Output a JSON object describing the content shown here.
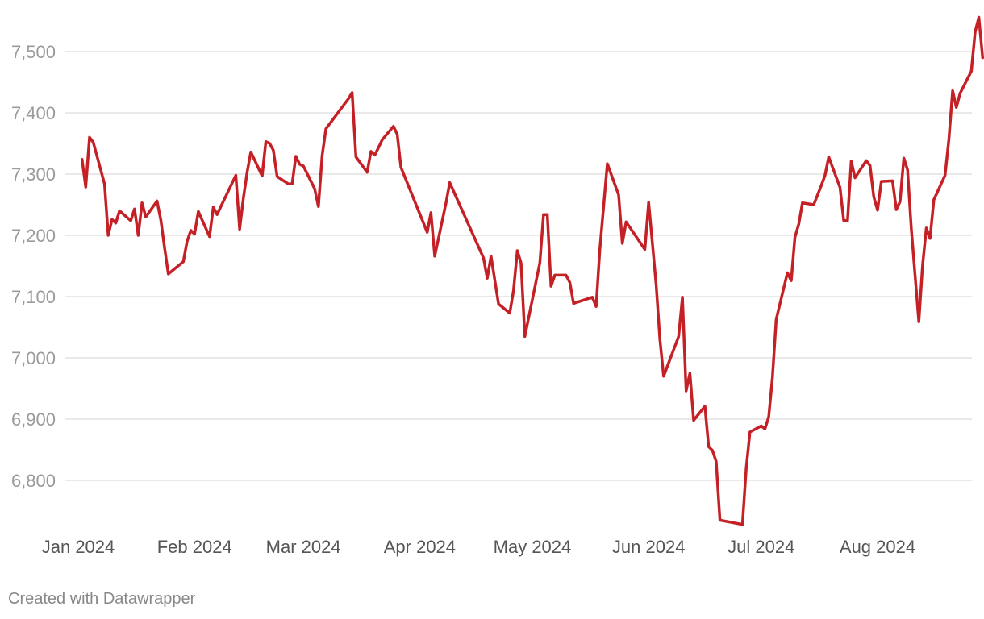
{
  "footer": {
    "credit": "Created with Datawrapper"
  },
  "colors": {
    "line": "#c42026",
    "grid": "#dcdcdc",
    "tick_y": "#9a9a9a",
    "tick_x": "#555555"
  },
  "chart_data": {
    "type": "line",
    "title": "",
    "xlabel": "",
    "ylabel": "",
    "grid": true,
    "ylim": [
      6700,
      7560
    ],
    "xlim": [
      "2024-01-01",
      "2024-08-27"
    ],
    "yticks": [
      6800,
      6900,
      7000,
      7100,
      7200,
      7300,
      7400,
      7500
    ],
    "ytick_labels": [
      "6,800",
      "6,900",
      "7,000",
      "7,100",
      "7,200",
      "7,300",
      "7,400",
      "7,500"
    ],
    "xticks": [
      {
        "date": "2024-01-01",
        "label": "Jan 2024"
      },
      {
        "date": "2024-02-01",
        "label": "Feb 2024"
      },
      {
        "date": "2024-03-01",
        "label": "Mar 2024"
      },
      {
        "date": "2024-04-01",
        "label": "Apr 2024"
      },
      {
        "date": "2024-05-01",
        "label": "May 2024"
      },
      {
        "date": "2024-06-01",
        "label": "Jun 2024"
      },
      {
        "date": "2024-07-01",
        "label": "Jul 2024"
      },
      {
        "date": "2024-08-01",
        "label": "Aug 2024"
      }
    ],
    "series": [
      {
        "points": [
          [
            "2024-01-02",
            7324
          ],
          [
            "2024-01-03",
            7279
          ],
          [
            "2024-01-04",
            7360
          ],
          [
            "2024-01-05",
            7352
          ],
          [
            "2024-01-08",
            7284
          ],
          [
            "2024-01-09",
            7200
          ],
          [
            "2024-01-10",
            7226
          ],
          [
            "2024-01-11",
            7220
          ],
          [
            "2024-01-12",
            7240
          ],
          [
            "2024-01-15",
            7224
          ],
          [
            "2024-01-16",
            7243
          ],
          [
            "2024-01-17",
            7200
          ],
          [
            "2024-01-18",
            7253
          ],
          [
            "2024-01-19",
            7230
          ],
          [
            "2024-01-22",
            7256
          ],
          [
            "2024-01-23",
            7225
          ],
          [
            "2024-01-24",
            7180
          ],
          [
            "2024-01-25",
            7137
          ],
          [
            "2024-01-29",
            7157
          ],
          [
            "2024-01-30",
            7190
          ],
          [
            "2024-01-31",
            7208
          ],
          [
            "2024-02-01",
            7202
          ],
          [
            "2024-02-02",
            7239
          ],
          [
            "2024-02-05",
            7198
          ],
          [
            "2024-02-06",
            7246
          ],
          [
            "2024-02-07",
            7234
          ],
          [
            "2024-02-12",
            7298
          ],
          [
            "2024-02-13",
            7210
          ],
          [
            "2024-02-14",
            7260
          ],
          [
            "2024-02-15",
            7303
          ],
          [
            "2024-02-16",
            7336
          ],
          [
            "2024-02-19",
            7297
          ],
          [
            "2024-02-20",
            7353
          ],
          [
            "2024-02-21",
            7350
          ],
          [
            "2024-02-22",
            7339
          ],
          [
            "2024-02-23",
            7296
          ],
          [
            "2024-02-26",
            7284
          ],
          [
            "2024-02-27",
            7284
          ],
          [
            "2024-02-28",
            7329
          ],
          [
            "2024-02-29",
            7316
          ],
          [
            "2024-03-01",
            7313
          ],
          [
            "2024-03-04",
            7276
          ],
          [
            "2024-03-05",
            7247
          ],
          [
            "2024-03-06",
            7330
          ],
          [
            "2024-03-07",
            7374
          ],
          [
            "2024-03-13",
            7423
          ],
          [
            "2024-03-14",
            7433
          ],
          [
            "2024-03-15",
            7328
          ],
          [
            "2024-03-18",
            7303
          ],
          [
            "2024-03-19",
            7337
          ],
          [
            "2024-03-20",
            7331
          ],
          [
            "2024-03-21",
            7343
          ],
          [
            "2024-03-22",
            7356
          ],
          [
            "2024-03-25",
            7378
          ],
          [
            "2024-03-26",
            7365
          ],
          [
            "2024-03-27",
            7311
          ],
          [
            "2024-04-03",
            7205
          ],
          [
            "2024-04-04",
            7237
          ],
          [
            "2024-04-05",
            7166
          ],
          [
            "2024-04-08",
            7253
          ],
          [
            "2024-04-09",
            7286
          ],
          [
            "2024-04-18",
            7163
          ],
          [
            "2024-04-19",
            7130
          ],
          [
            "2024-04-20",
            7166
          ],
          [
            "2024-04-22",
            7088
          ],
          [
            "2024-04-25",
            7073
          ],
          [
            "2024-04-26",
            7110
          ],
          [
            "2024-04-27",
            7175
          ],
          [
            "2024-04-28",
            7155
          ],
          [
            "2024-04-29",
            7035
          ],
          [
            "2024-05-03",
            7155
          ],
          [
            "2024-05-04",
            7234
          ],
          [
            "2024-05-05",
            7234
          ],
          [
            "2024-05-06",
            7117
          ],
          [
            "2024-05-07",
            7135
          ],
          [
            "2024-05-10",
            7135
          ],
          [
            "2024-05-11",
            7123
          ],
          [
            "2024-05-12",
            7089
          ],
          [
            "2024-05-17",
            7099
          ],
          [
            "2024-05-18",
            7084
          ],
          [
            "2024-05-19",
            7177
          ],
          [
            "2024-05-21",
            7317
          ],
          [
            "2024-05-24",
            7266
          ],
          [
            "2024-05-25",
            7187
          ],
          [
            "2024-05-26",
            7222
          ],
          [
            "2024-05-31",
            7177
          ],
          [
            "2024-06-01",
            7254
          ],
          [
            "2024-06-03",
            7120
          ],
          [
            "2024-06-04",
            7030
          ],
          [
            "2024-06-05",
            6970
          ],
          [
            "2024-06-09",
            7035
          ],
          [
            "2024-06-10",
            7099
          ],
          [
            "2024-06-11",
            6946
          ],
          [
            "2024-06-12",
            6975
          ],
          [
            "2024-06-13",
            6898
          ],
          [
            "2024-06-16",
            6921
          ],
          [
            "2024-06-17",
            6855
          ],
          [
            "2024-06-18",
            6849
          ],
          [
            "2024-06-19",
            6831
          ],
          [
            "2024-06-20",
            6735
          ],
          [
            "2024-06-26",
            6728
          ],
          [
            "2024-06-27",
            6820
          ],
          [
            "2024-06-28",
            6879
          ],
          [
            "2024-07-01",
            6889
          ],
          [
            "2024-07-02",
            6884
          ],
          [
            "2024-07-03",
            6904
          ],
          [
            "2024-07-04",
            6968
          ],
          [
            "2024-07-05",
            7063
          ],
          [
            "2024-07-08",
            7139
          ],
          [
            "2024-07-09",
            7126
          ],
          [
            "2024-07-10",
            7197
          ],
          [
            "2024-07-11",
            7218
          ],
          [
            "2024-07-12",
            7253
          ],
          [
            "2024-07-15",
            7250
          ],
          [
            "2024-07-17",
            7281
          ],
          [
            "2024-07-18",
            7298
          ],
          [
            "2024-07-19",
            7328
          ],
          [
            "2024-07-22",
            7278
          ],
          [
            "2024-07-23",
            7224
          ],
          [
            "2024-07-24",
            7224
          ],
          [
            "2024-07-25",
            7321
          ],
          [
            "2024-07-26",
            7294
          ],
          [
            "2024-07-29",
            7322
          ],
          [
            "2024-07-30",
            7314
          ],
          [
            "2024-07-31",
            7263
          ],
          [
            "2024-08-01",
            7241
          ],
          [
            "2024-08-02",
            7288
          ],
          [
            "2024-08-05",
            7289
          ],
          [
            "2024-08-06",
            7242
          ],
          [
            "2024-08-07",
            7255
          ],
          [
            "2024-08-08",
            7326
          ],
          [
            "2024-08-09",
            7307
          ],
          [
            "2024-08-10",
            7210
          ],
          [
            "2024-08-12",
            7059
          ],
          [
            "2024-08-13",
            7150
          ],
          [
            "2024-08-14",
            7212
          ],
          [
            "2024-08-15",
            7195
          ],
          [
            "2024-08-16",
            7258
          ],
          [
            "2024-08-19",
            7298
          ],
          [
            "2024-08-20",
            7356
          ],
          [
            "2024-08-21",
            7436
          ],
          [
            "2024-08-22",
            7409
          ],
          [
            "2024-08-23",
            7432
          ],
          [
            "2024-08-26",
            7468
          ],
          [
            "2024-08-27",
            7532
          ],
          [
            "2024-08-28",
            7556
          ],
          [
            "2024-08-29",
            7490
          ]
        ]
      }
    ]
  }
}
